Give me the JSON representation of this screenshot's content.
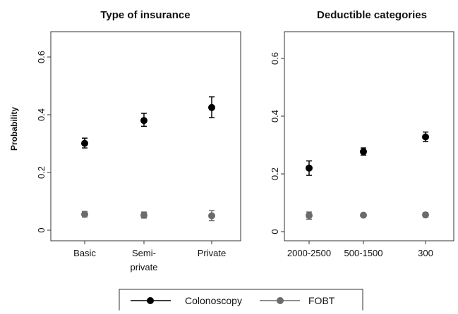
{
  "chart_data": [
    {
      "type": "scatter",
      "title": "Type of insurance",
      "ylabel": "Probability",
      "xlabel": "",
      "ylim": [
        0,
        0.6
      ],
      "yticks": [
        "0",
        "0.2",
        "0.4",
        "0.6"
      ],
      "ytick_values": [
        0,
        0.2,
        0.4,
        0.6
      ],
      "grid": false,
      "categories": [
        {
          "line1": "Basic",
          "line2": ""
        },
        {
          "line1": "Semi-",
          "line2": "private"
        },
        {
          "line1": "Private",
          "line2": ""
        }
      ],
      "series": [
        {
          "name": "Colonoscopy",
          "color": "#000000",
          "values": [
            0.301,
            0.38,
            0.425
          ],
          "lower": [
            0.285,
            0.36,
            0.39
          ],
          "upper": [
            0.319,
            0.405,
            0.462
          ]
        },
        {
          "name": "FOBT",
          "color": "#6b6b6b",
          "values": [
            0.055,
            0.052,
            0.05
          ],
          "lower": [
            0.046,
            0.042,
            0.033
          ],
          "upper": [
            0.065,
            0.063,
            0.068
          ]
        }
      ]
    },
    {
      "type": "scatter",
      "title": "Deductible categories",
      "ylabel": "",
      "xlabel": "",
      "ylim": [
        0,
        0.6
      ],
      "yticks": [
        "0",
        "0.2",
        "0.4",
        "0.6"
      ],
      "ytick_values": [
        0,
        0.2,
        0.4,
        0.6
      ],
      "grid": false,
      "categories": [
        {
          "line1": "2000-2500",
          "line2": ""
        },
        {
          "line1": "500-1500",
          "line2": ""
        },
        {
          "line1": "300",
          "line2": ""
        }
      ],
      "series": [
        {
          "name": "Colonoscopy",
          "color": "#000000",
          "values": [
            0.22,
            0.277,
            0.328
          ],
          "lower": [
            0.195,
            0.265,
            0.312
          ],
          "upper": [
            0.245,
            0.29,
            0.345
          ]
        },
        {
          "name": "FOBT",
          "color": "#6b6b6b",
          "values": [
            0.056,
            0.057,
            0.058
          ],
          "lower": [
            0.043,
            0.051,
            0.05
          ],
          "upper": [
            0.068,
            0.063,
            0.066
          ]
        }
      ]
    }
  ],
  "legend": {
    "items": [
      {
        "label": "Colonoscopy",
        "color": "#000000"
      },
      {
        "label": "FOBT",
        "color": "#6b6b6b"
      }
    ]
  }
}
